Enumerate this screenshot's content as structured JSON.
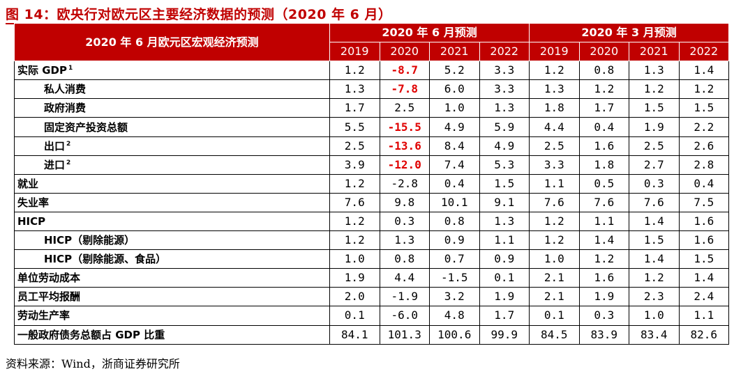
{
  "title": "图 14：欧央行对欧元区主要经济数据的预测（2020 年 6 月）",
  "header": {
    "row_label": "2020 年 6 月欧元区宏观经济预测",
    "group_june": "2020 年 6 月预测",
    "group_march": "2020 年 3 月预测",
    "years": [
      "2019",
      "2020",
      "2021",
      "2022",
      "2019",
      "2020",
      "2021",
      "2022"
    ]
  },
  "colors": {
    "accent": "#c00000",
    "negative_highlight": "#e00000"
  },
  "rows": [
    {
      "label": "实际 GDP",
      "sup": "1",
      "indent": false,
      "values": [
        "1.2",
        "-8.7",
        "5.2",
        "3.3",
        "1.2",
        "0.8",
        "1.3",
        "1.4"
      ],
      "highlight": [
        1
      ]
    },
    {
      "label": "私人消费",
      "sup": "",
      "indent": true,
      "values": [
        "1.3",
        "-7.8",
        "6.0",
        "3.3",
        "1.3",
        "1.2",
        "1.2",
        "1.2"
      ],
      "highlight": [
        1
      ]
    },
    {
      "label": "政府消费",
      "sup": "",
      "indent": true,
      "values": [
        "1.7",
        "2.5",
        "1.0",
        "1.3",
        "1.8",
        "1.7",
        "1.5",
        "1.5"
      ],
      "highlight": []
    },
    {
      "label": "固定资产投资总额",
      "sup": "",
      "indent": true,
      "values": [
        "5.5",
        "-15.5",
        "4.9",
        "5.9",
        "4.4",
        "0.4",
        "1.9",
        "2.2"
      ],
      "highlight": [
        1
      ]
    },
    {
      "label": "出口",
      "sup": "2",
      "indent": true,
      "values": [
        "2.5",
        "-13.6",
        "8.4",
        "4.9",
        "2.5",
        "1.6",
        "2.5",
        "2.6"
      ],
      "highlight": [
        1
      ]
    },
    {
      "label": "进口",
      "sup": "2",
      "indent": true,
      "values": [
        "3.9",
        "-12.0",
        "7.4",
        "5.3",
        "3.3",
        "1.8",
        "2.7",
        "2.8"
      ],
      "highlight": [
        1
      ]
    },
    {
      "label": "就业",
      "sup": "",
      "indent": false,
      "values": [
        "1.2",
        "-2.8",
        "0.4",
        "1.5",
        "1.1",
        "0.5",
        "0.3",
        "0.4"
      ],
      "highlight": []
    },
    {
      "label": "失业率",
      "sup": "",
      "indent": false,
      "values": [
        "7.6",
        "9.8",
        "10.1",
        "9.1",
        "7.6",
        "7.6",
        "7.6",
        "7.5"
      ],
      "highlight": []
    },
    {
      "label": "HICP",
      "sup": "",
      "indent": false,
      "values": [
        "1.2",
        "0.3",
        "0.8",
        "1.3",
        "1.2",
        "1.1",
        "1.4",
        "1.6"
      ],
      "highlight": []
    },
    {
      "label": "HICP（剔除能源）",
      "sup": "",
      "indent": true,
      "values": [
        "1.2",
        "1.3",
        "0.9",
        "1.1",
        "1.2",
        "1.4",
        "1.5",
        "1.6"
      ],
      "highlight": []
    },
    {
      "label": "HICP（剔除能源、食品）",
      "sup": "",
      "indent": true,
      "values": [
        "1.0",
        "0.8",
        "0.7",
        "0.9",
        "1.0",
        "1.2",
        "1.4",
        "1.5"
      ],
      "highlight": []
    },
    {
      "label": "单位劳动成本",
      "sup": "",
      "indent": false,
      "values": [
        "1.9",
        "4.4",
        "-1.5",
        "0.1",
        "2.1",
        "1.6",
        "1.2",
        "1.4"
      ],
      "highlight": []
    },
    {
      "label": "员工平均报酬",
      "sup": "",
      "indent": false,
      "values": [
        "2.0",
        "-1.9",
        "3.2",
        "1.9",
        "2.1",
        "1.9",
        "2.3",
        "2.4"
      ],
      "highlight": []
    },
    {
      "label": "劳动生产率",
      "sup": "",
      "indent": false,
      "values": [
        "0.1",
        "-6.0",
        "4.8",
        "1.7",
        "0.1",
        "0.3",
        "1.0",
        "1.1"
      ],
      "highlight": []
    },
    {
      "label": "一般政府债务总额占 GDP 比重",
      "sup": "",
      "indent": false,
      "values": [
        "84.1",
        "101.3",
        "100.6",
        "99.9",
        "84.5",
        "83.9",
        "83.4",
        "82.6"
      ],
      "highlight": []
    }
  ],
  "source": "资料来源：Wind，浙商证券研究所"
}
